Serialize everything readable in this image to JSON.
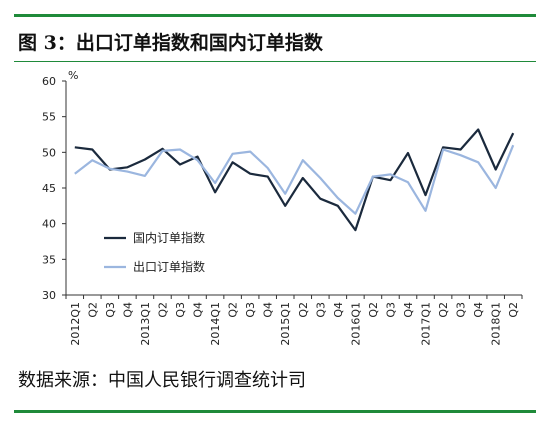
{
  "header": {
    "title": "图 3：出口订单指数和国内订单指数"
  },
  "footer": {
    "source": "数据来源：中国人民银行调查统计司"
  },
  "colors": {
    "rule": "#1f8a3a",
    "domestic": "#1b2a3d",
    "export": "#9bb6df"
  },
  "chart_data": {
    "type": "line",
    "ylabel": "%",
    "ylim": [
      30,
      60
    ],
    "yticks": [
      30,
      35,
      40,
      45,
      50,
      55,
      60
    ],
    "grid": false,
    "legend_position": "left-middle",
    "x": [
      "2012Q1",
      "Q2",
      "Q3",
      "Q4",
      "2013Q1",
      "Q2",
      "Q3",
      "Q4",
      "2014Q1",
      "Q2",
      "Q3",
      "Q4",
      "2015Q1",
      "Q2",
      "Q3",
      "Q4",
      "2016Q1",
      "Q2",
      "Q3",
      "Q4",
      "2017Q1",
      "Q2",
      "Q3",
      "Q4",
      "2018Q1",
      "Q2"
    ],
    "series": [
      {
        "name": "国内订单指数",
        "color": "#1b2a3d",
        "values": [
          50.7,
          50.4,
          47.6,
          47.9,
          49.0,
          50.5,
          48.3,
          49.4,
          44.4,
          48.6,
          47.0,
          46.6,
          42.5,
          46.4,
          43.5,
          42.5,
          39.1,
          46.6,
          46.1,
          49.9,
          44.0,
          50.7,
          50.4,
          53.2,
          47.6,
          52.7
        ]
      },
      {
        "name": "出口订单指数",
        "color": "#9bb6df",
        "values": [
          47.0,
          48.9,
          47.7,
          47.3,
          46.7,
          50.2,
          50.4,
          48.9,
          45.7,
          49.8,
          50.1,
          47.8,
          44.2,
          48.9,
          46.4,
          43.6,
          41.4,
          46.6,
          46.9,
          45.8,
          41.8,
          50.4,
          49.6,
          48.6,
          45.0,
          51.0
        ]
      }
    ]
  }
}
